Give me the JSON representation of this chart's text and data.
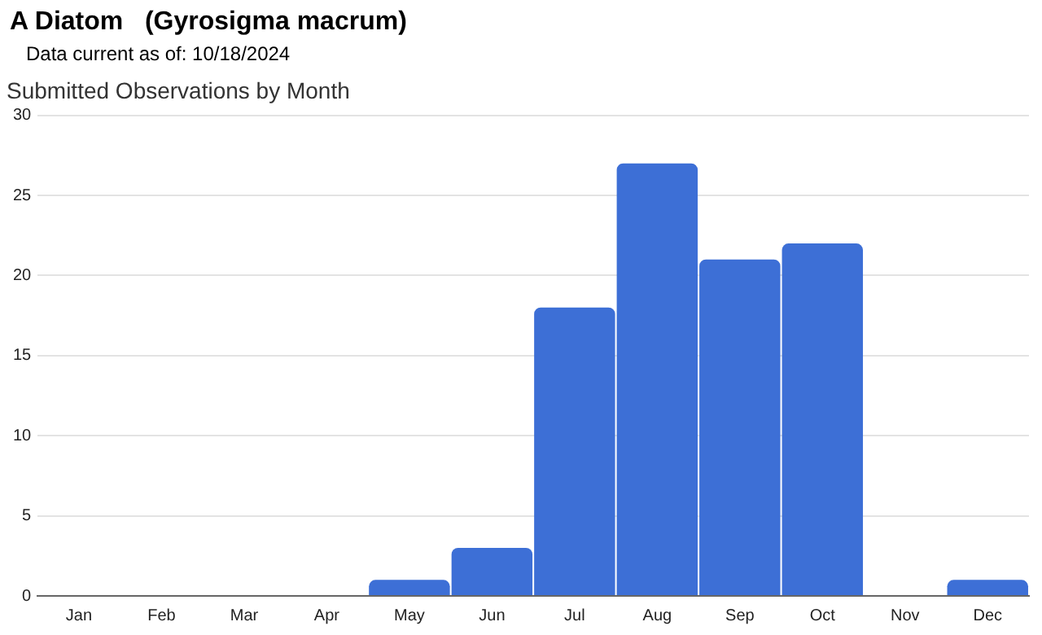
{
  "chart_data": {
    "type": "bar",
    "title": "A Diatom   (Gyrosigma macrum)",
    "subtitle": "Submitted Observations by Month",
    "annotations": [
      "Data current as of: 10/18/2024"
    ],
    "categories": [
      "Jan",
      "Feb",
      "Mar",
      "Apr",
      "May",
      "Jun",
      "Jul",
      "Aug",
      "Sep",
      "Oct",
      "Nov",
      "Dec"
    ],
    "values": [
      0,
      0,
      0,
      0,
      1,
      3,
      18,
      27,
      21,
      22,
      0,
      1
    ],
    "color": "#3d6fd6",
    "ylim": [
      0,
      30
    ],
    "yticks": [
      0,
      5,
      10,
      15,
      20,
      25,
      30
    ],
    "grid": "y",
    "legend": false
  }
}
